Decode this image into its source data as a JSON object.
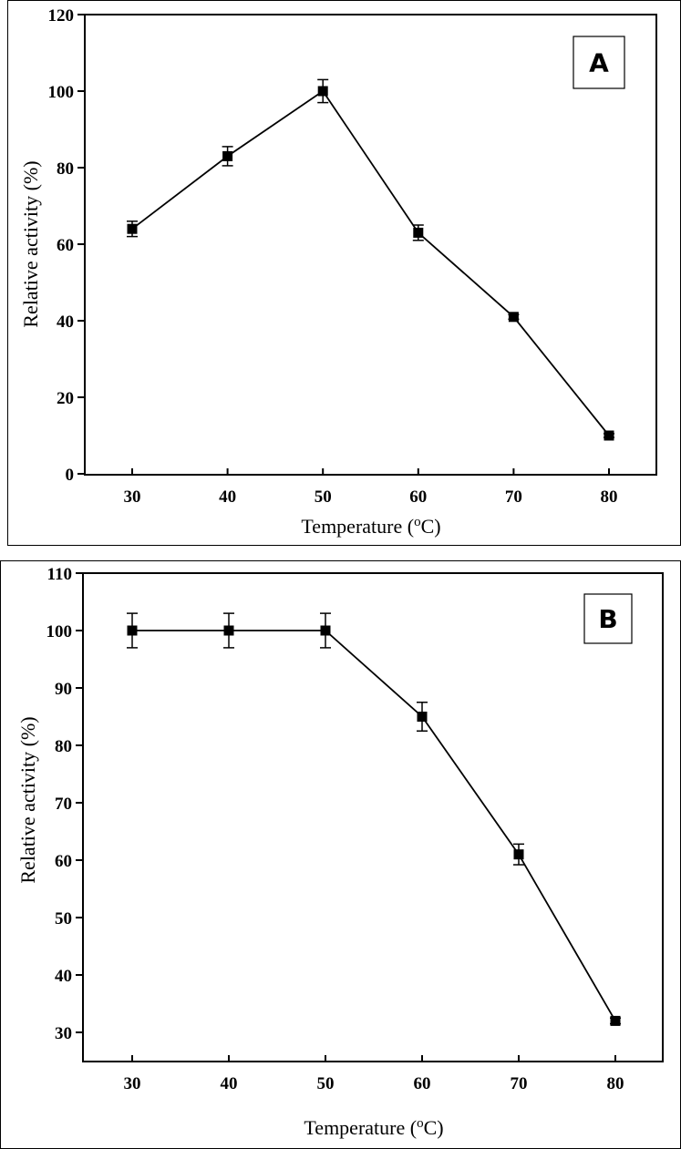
{
  "chart_data": [
    {
      "type": "line",
      "panel_label": "A",
      "xlabel": "Temperature (",
      "xlabel_sup": "o",
      "xlabel_end": "C)",
      "ylabel": "Relative activity (%)",
      "x": [
        30,
        40,
        50,
        60,
        70,
        80
      ],
      "y": [
        64,
        83,
        100,
        63,
        41,
        10
      ],
      "yerr": [
        2,
        2.5,
        3,
        2,
        0.6,
        0.5
      ],
      "xticks": [
        30,
        40,
        50,
        60,
        70,
        80
      ],
      "yticks": [
        0,
        20,
        40,
        60,
        80,
        100,
        120
      ],
      "xlim": [
        25,
        84.5
      ],
      "ylim": [
        0,
        120
      ],
      "marker": "square",
      "color": "#000000"
    },
    {
      "type": "line",
      "panel_label": "B",
      "xlabel": "Temperature (",
      "xlabel_sup": "o",
      "xlabel_end": "C)",
      "ylabel": "Relative activity (%)",
      "x": [
        30,
        40,
        50,
        60,
        70,
        80
      ],
      "y": [
        100,
        100,
        100,
        85,
        61,
        32
      ],
      "yerr": [
        3,
        3,
        3,
        2.5,
        1.8,
        0.5
      ],
      "xticks": [
        30,
        40,
        50,
        60,
        70,
        80
      ],
      "yticks": [
        30,
        40,
        50,
        60,
        70,
        80,
        90,
        100,
        110
      ],
      "xlim": [
        24.5,
        85
      ],
      "ylim": [
        25,
        110
      ],
      "marker": "square",
      "color": "#000000"
    }
  ]
}
